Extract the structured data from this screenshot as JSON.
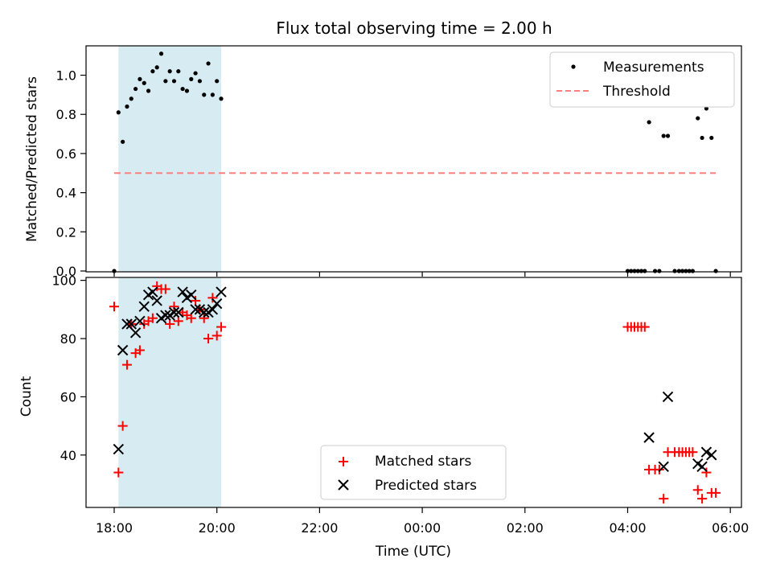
{
  "chart_data": [
    {
      "type": "scatter",
      "title": "Flux total observing time = 2.00 h",
      "xlabel": "",
      "ylabel": "Matched/Predicted stars",
      "ylim": [
        0,
        1.15
      ],
      "yticks": [
        "0.0",
        "0.2",
        "0.4",
        "0.6",
        "0.8",
        "1.0"
      ],
      "shaded_span": [
        "18:05",
        "20:05"
      ],
      "shade_color": "#add8e6",
      "legend": {
        "placement": "top-right",
        "entries": [
          "Measurements",
          "Threshold"
        ]
      },
      "series": [
        {
          "name": "Measurements",
          "color": "#000000",
          "marker": "dot",
          "points": [
            [
              "18:00",
              0.0
            ],
            [
              "18:05",
              0.81
            ],
            [
              "18:10",
              0.66
            ],
            [
              "18:15",
              0.84
            ],
            [
              "18:20",
              0.88
            ],
            [
              "18:25",
              0.93
            ],
            [
              "18:30",
              0.98
            ],
            [
              "18:35",
              0.96
            ],
            [
              "18:40",
              0.92
            ],
            [
              "18:45",
              1.02
            ],
            [
              "18:50",
              1.04
            ],
            [
              "18:55",
              1.11
            ],
            [
              "19:00",
              0.97
            ],
            [
              "19:05",
              1.02
            ],
            [
              "19:10",
              0.97
            ],
            [
              "19:15",
              1.02
            ],
            [
              "19:20",
              0.93
            ],
            [
              "19:25",
              0.92
            ],
            [
              "19:30",
              0.98
            ],
            [
              "19:35",
              1.01
            ],
            [
              "19:40",
              0.97
            ],
            [
              "19:45",
              0.9
            ],
            [
              "19:50",
              1.06
            ],
            [
              "19:55",
              0.9
            ],
            [
              "20:00",
              0.97
            ],
            [
              "20:05",
              0.88
            ],
            [
              "04:00",
              0.0
            ],
            [
              "04:04",
              0.0
            ],
            [
              "04:08",
              0.0
            ],
            [
              "04:12",
              0.0
            ],
            [
              "04:16",
              0.0
            ],
            [
              "04:20",
              0.0
            ],
            [
              "04:25",
              0.76
            ],
            [
              "04:32",
              0.0
            ],
            [
              "04:37",
              0.0
            ],
            [
              "04:42",
              0.69
            ],
            [
              "04:47",
              0.69
            ],
            [
              "04:55",
              0.0
            ],
            [
              "05:00",
              0.0
            ],
            [
              "05:04",
              0.0
            ],
            [
              "05:08",
              0.0
            ],
            [
              "05:12",
              0.0
            ],
            [
              "05:16",
              0.0
            ],
            [
              "05:22",
              0.78
            ],
            [
              "05:27",
              0.68
            ],
            [
              "05:32",
              0.83
            ],
            [
              "05:38",
              0.68
            ],
            [
              "05:43",
              0.0
            ]
          ]
        },
        {
          "name": "Threshold",
          "color": "#ff7f7f",
          "style": "dashed",
          "points": [
            [
              "18:00",
              0.5
            ],
            [
              "05:43",
              0.5
            ]
          ]
        }
      ]
    },
    {
      "type": "scatter",
      "title": "",
      "xlabel": "Time (UTC)",
      "ylabel": "Count",
      "ylim": [
        22,
        101
      ],
      "yticks": [
        "40",
        "60",
        "80",
        "100"
      ],
      "xticks": [
        "18:00",
        "20:00",
        "22:00",
        "00:00",
        "02:00",
        "04:00",
        "06:00"
      ],
      "shaded_span": [
        "18:05",
        "20:05"
      ],
      "shade_color": "#add8e6",
      "legend": {
        "placement": "lower-center",
        "entries": [
          "Matched stars",
          "Predicted stars"
        ]
      },
      "series": [
        {
          "name": "Matched stars",
          "color": "#ff0000",
          "marker": "plus",
          "points": [
            [
              "18:00",
              91
            ],
            [
              "18:05",
              34
            ],
            [
              "18:10",
              50
            ],
            [
              "18:15",
              71
            ],
            [
              "18:20",
              85
            ],
            [
              "18:25",
              75
            ],
            [
              "18:30",
              76
            ],
            [
              "18:35",
              85
            ],
            [
              "18:40",
              86
            ],
            [
              "18:45",
              87
            ],
            [
              "18:50",
              98
            ],
            [
              "18:55",
              97
            ],
            [
              "19:00",
              97
            ],
            [
              "19:05",
              85
            ],
            [
              "19:10",
              91
            ],
            [
              "19:15",
              86
            ],
            [
              "19:20",
              89
            ],
            [
              "19:25",
              88
            ],
            [
              "19:30",
              87
            ],
            [
              "19:35",
              93
            ],
            [
              "19:40",
              90
            ],
            [
              "19:45",
              87
            ],
            [
              "19:50",
              80
            ],
            [
              "19:55",
              94
            ],
            [
              "20:00",
              81
            ],
            [
              "20:05",
              84
            ],
            [
              "04:00",
              84
            ],
            [
              "04:04",
              84
            ],
            [
              "04:08",
              84
            ],
            [
              "04:12",
              84
            ],
            [
              "04:16",
              84
            ],
            [
              "04:20",
              84
            ],
            [
              "04:25",
              35
            ],
            [
              "04:32",
              35
            ],
            [
              "04:37",
              35
            ],
            [
              "04:42",
              25
            ],
            [
              "04:47",
              41
            ],
            [
              "04:55",
              41
            ],
            [
              "05:00",
              41
            ],
            [
              "05:04",
              41
            ],
            [
              "05:08",
              41
            ],
            [
              "05:12",
              41
            ],
            [
              "05:16",
              41
            ],
            [
              "05:22",
              28
            ],
            [
              "05:27",
              25
            ],
            [
              "05:32",
              34
            ],
            [
              "05:38",
              27
            ],
            [
              "05:43",
              27
            ]
          ]
        },
        {
          "name": "Predicted stars",
          "color": "#000000",
          "marker": "x",
          "points": [
            [
              "18:05",
              42
            ],
            [
              "18:10",
              76
            ],
            [
              "18:15",
              85
            ],
            [
              "18:20",
              85
            ],
            [
              "18:25",
              82
            ],
            [
              "18:30",
              86
            ],
            [
              "18:35",
              91
            ],
            [
              "18:40",
              95
            ],
            [
              "18:45",
              96
            ],
            [
              "18:50",
              93
            ],
            [
              "18:55",
              87
            ],
            [
              "19:00",
              88
            ],
            [
              "19:05",
              88
            ],
            [
              "19:10",
              89
            ],
            [
              "19:15",
              89
            ],
            [
              "19:20",
              96
            ],
            [
              "19:25",
              94
            ],
            [
              "19:30",
              95
            ],
            [
              "19:35",
              90
            ],
            [
              "19:40",
              90
            ],
            [
              "19:45",
              89
            ],
            [
              "19:50",
              89
            ],
            [
              "19:55",
              90
            ],
            [
              "20:00",
              92
            ],
            [
              "20:05",
              96
            ],
            [
              "04:25",
              46
            ],
            [
              "04:42",
              36
            ],
            [
              "04:47",
              60
            ],
            [
              "05:22",
              37
            ],
            [
              "05:27",
              36
            ],
            [
              "05:32",
              41
            ],
            [
              "05:38",
              40
            ]
          ]
        }
      ]
    }
  ]
}
